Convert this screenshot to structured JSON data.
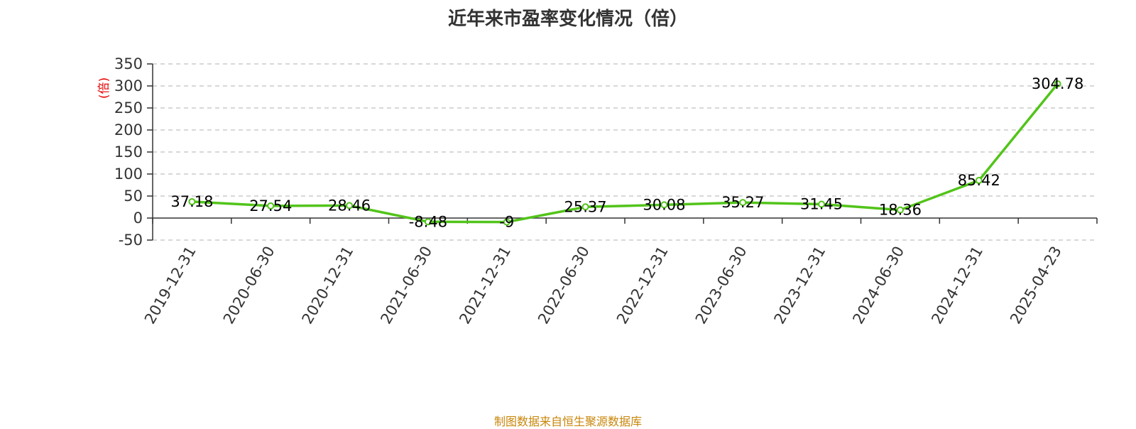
{
  "title": "近年来市盈率变化情况（倍）",
  "source": "制图数据来自恒生聚源数据库",
  "chart_data": {
    "type": "line",
    "title": "近年来市盈率变化情况（倍）",
    "ylabel": "(倍)",
    "ylim": [
      -50,
      350
    ],
    "yticks": [
      -50,
      0,
      50,
      100,
      150,
      200,
      250,
      300,
      350
    ],
    "grid": true,
    "categories": [
      "2019-12-31",
      "2020-06-30",
      "2020-12-31",
      "2021-06-30",
      "2021-12-31",
      "2022-06-30",
      "2022-12-31",
      "2023-06-30",
      "2023-12-31",
      "2024-06-30",
      "2024-12-31",
      "2025-04-23"
    ],
    "series": [
      {
        "values": [
          37.18,
          27.54,
          28.46,
          -8.48,
          -9,
          25.37,
          30.08,
          35.27,
          31.45,
          18.36,
          85.42,
          304.78
        ],
        "labels": [
          "37.18",
          "27.54",
          "28.46",
          "-8.48",
          "-9",
          "25.37",
          "30.08",
          "35.27",
          "31.45",
          "18.36",
          "85.42",
          "304.78"
        ],
        "color": "#52c41a"
      }
    ],
    "axis_color": "#333333",
    "grid_color": "#cccccc",
    "unit_color": "#e60000"
  }
}
